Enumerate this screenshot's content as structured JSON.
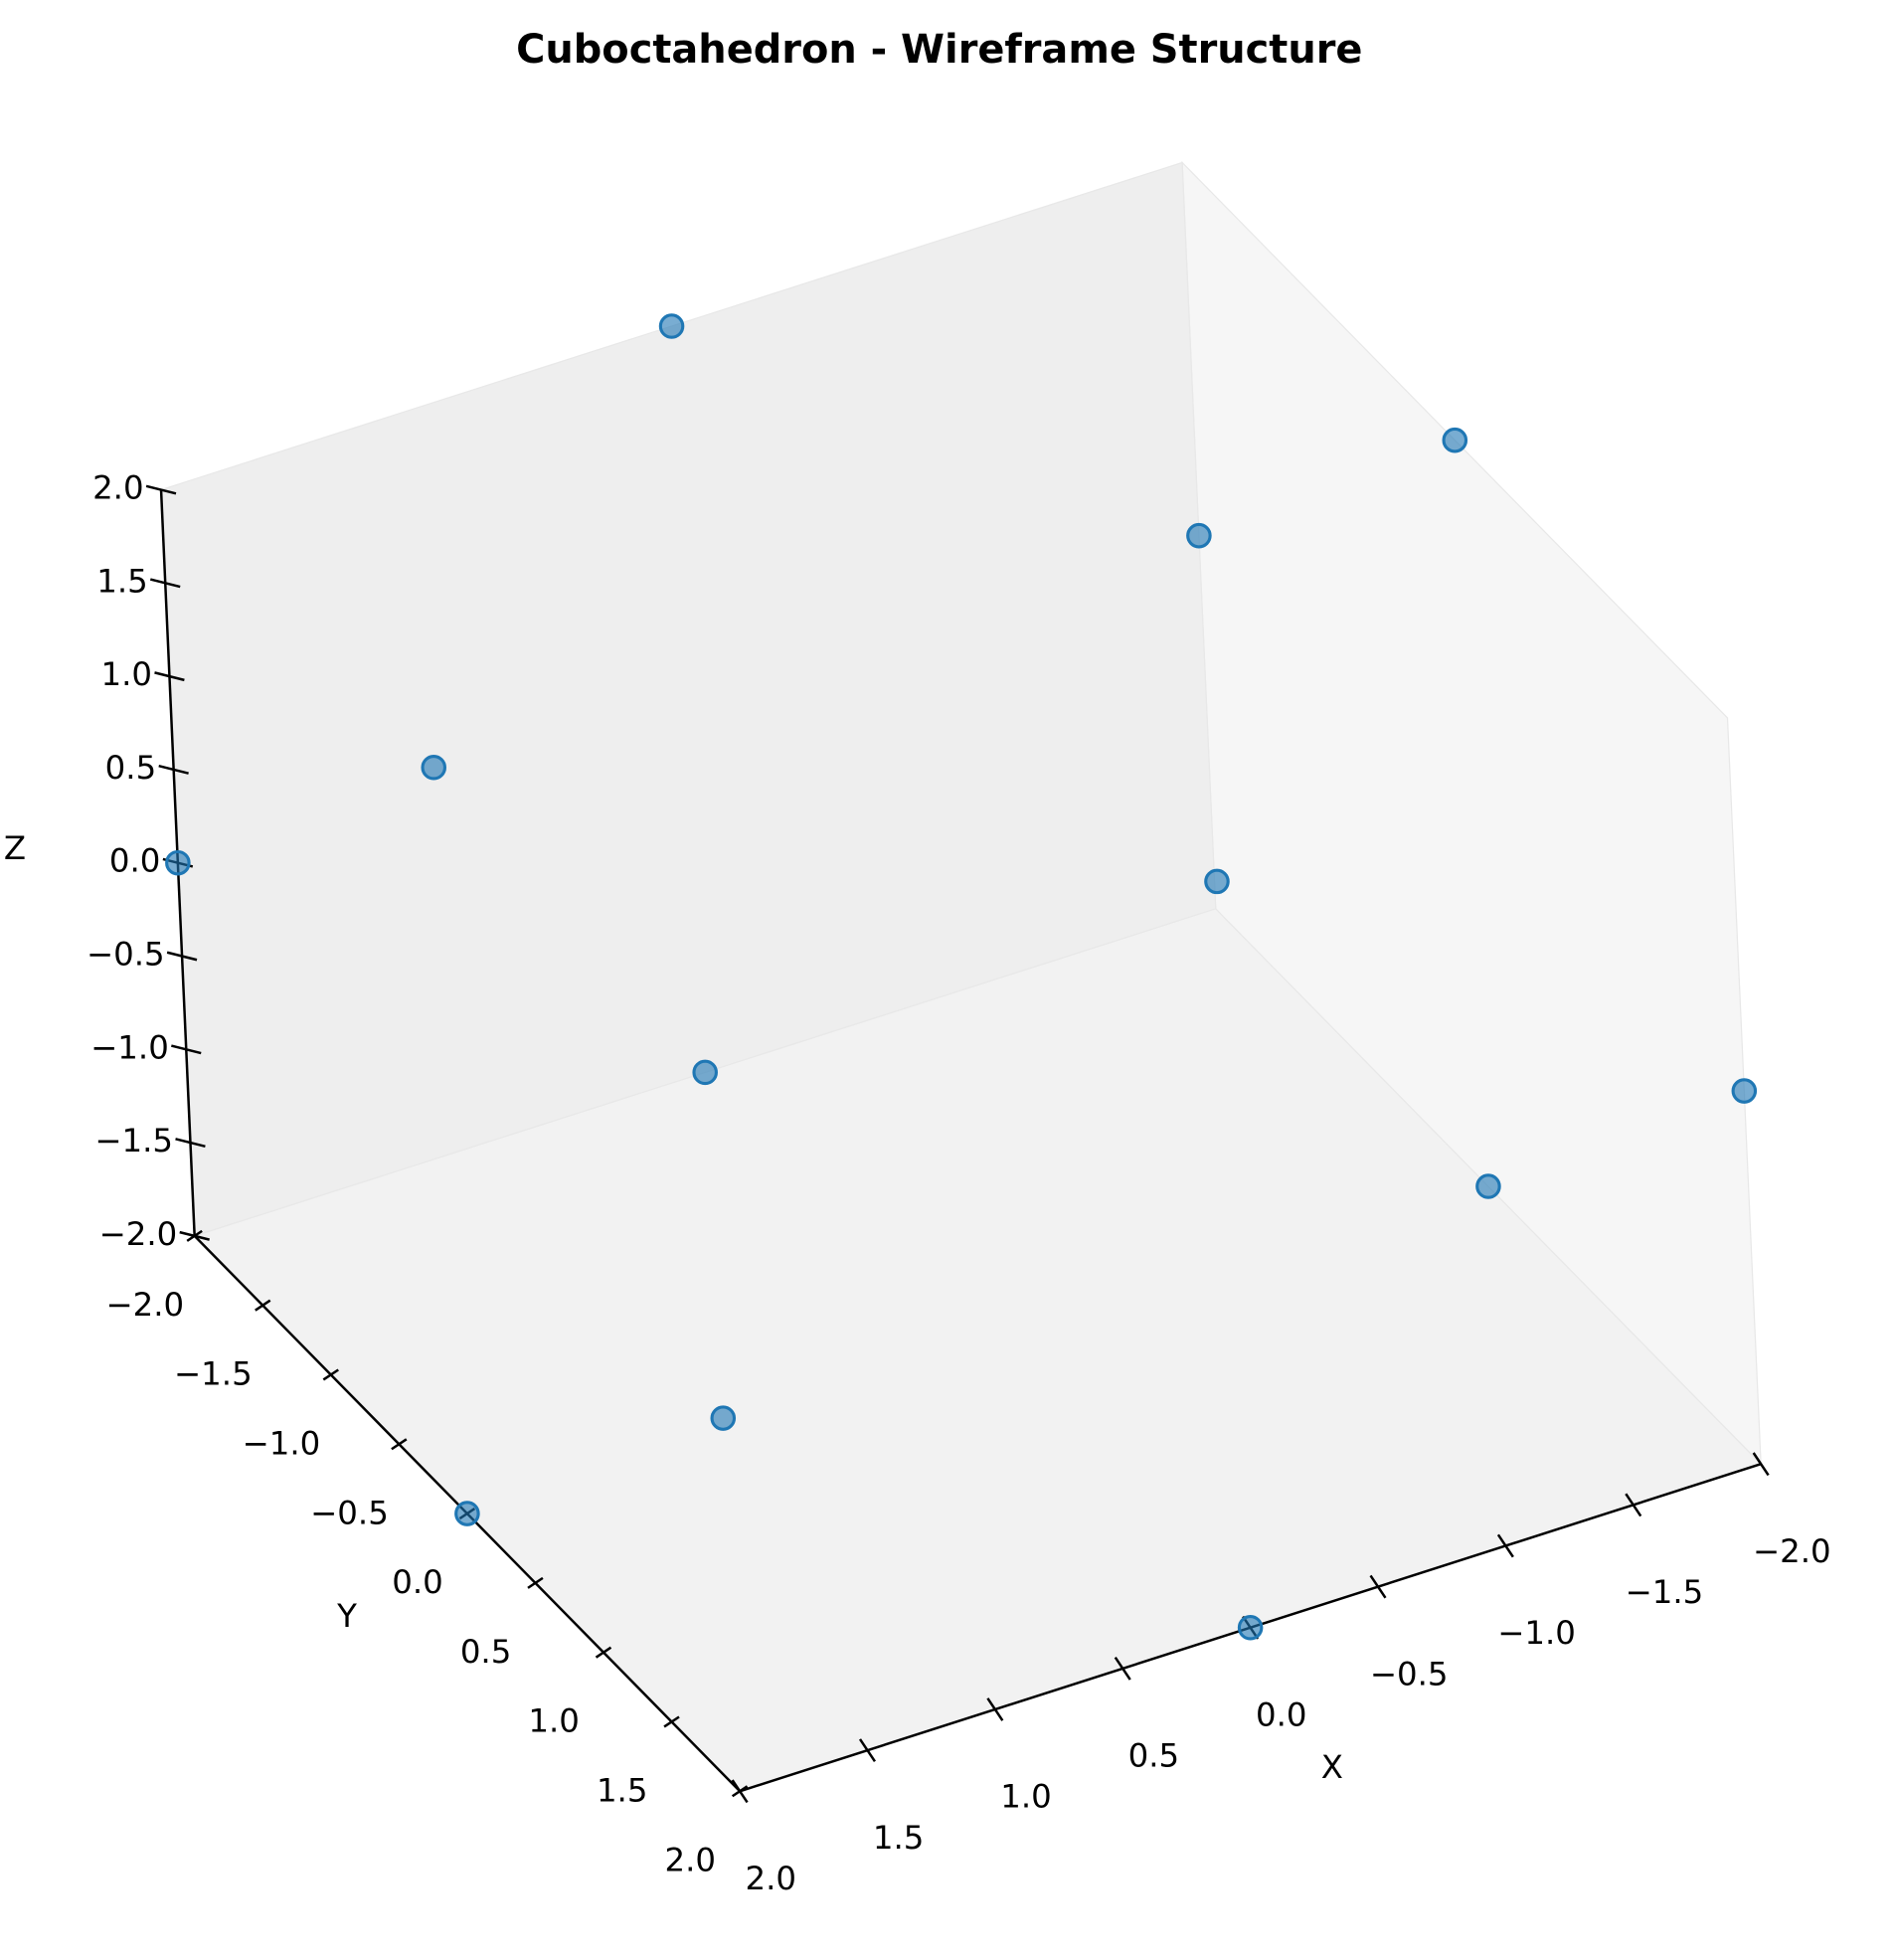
{
  "chart_data": {
    "type": "scatter3d",
    "title": "Cuboctahedron - Wireframe Structure",
    "x_label": "X",
    "y_label": "Y",
    "z_label": "Z",
    "series": [
      {
        "color": "#1f77b4",
        "x": [
          2,
          2,
          -2,
          -2,
          2,
          2,
          -2,
          -2,
          0,
          0,
          0,
          0
        ],
        "y": [
          2,
          -2,
          2,
          -2,
          0,
          0,
          0,
          0,
          2,
          2,
          -2,
          -2
        ],
        "z": [
          0,
          0,
          0,
          0,
          2,
          -2,
          2,
          -2,
          2,
          -2,
          2,
          -2
        ]
      }
    ],
    "xlim": [
      -2,
      2
    ],
    "ylim": [
      -2,
      2
    ],
    "zlim": [
      -2,
      2
    ],
    "xticks": [
      {
        "value": -2,
        "label": "−2.0"
      },
      {
        "value": -1.5,
        "label": "−1.5"
      },
      {
        "value": -1,
        "label": "−1.0"
      },
      {
        "value": -0.5,
        "label": "−0.5"
      },
      {
        "value": 0,
        "label": "0.0"
      },
      0.5,
      {
        "value": 1,
        "label": "1.0"
      },
      1.5,
      {
        "value": 2,
        "label": "2.0"
      }
    ],
    "yticks": [
      {
        "value": -2,
        "label": "−2.0"
      },
      {
        "value": -1.5,
        "label": "−1.5"
      },
      {
        "value": -1,
        "label": "−1.0"
      },
      {
        "value": -0.5,
        "label": "−0.5"
      },
      {
        "value": 0,
        "label": "0.0"
      },
      0.5,
      {
        "value": 1,
        "label": "1.0"
      },
      1.5,
      {
        "value": 2,
        "label": "2.0"
      }
    ],
    "zticks": [
      {
        "value": -2,
        "label": "−2.0"
      },
      {
        "value": -1.5,
        "label": "−1.5"
      },
      {
        "value": -1,
        "label": "−1.0"
      },
      {
        "value": -0.5,
        "label": "−0.5"
      },
      {
        "value": 0,
        "label": "0.0"
      },
      0.5,
      {
        "value": 1,
        "label": "1.0"
      },
      1.5,
      {
        "value": 2,
        "label": "2.0"
      }
    ]
  }
}
